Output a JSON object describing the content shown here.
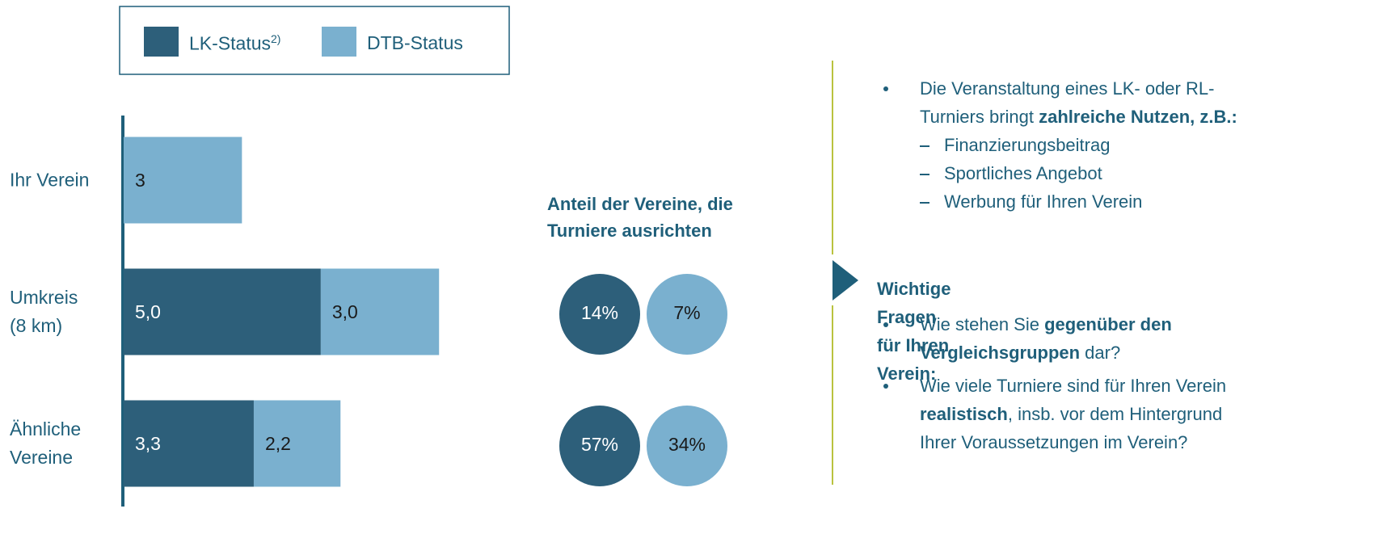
{
  "chart_data": [
    {
      "type": "stacked-barh",
      "categories": [
        "Ihr Verein",
        "Umkreis\n(8 km)",
        "Ähnliche\nVereine"
      ],
      "series": [
        {
          "name": "LK-Status",
          "name_note": "2)",
          "color": "#2d5f7a",
          "label_color": "#ffffff",
          "values": [
            null,
            5.0,
            3.3
          ],
          "value_labels": [
            null,
            "5,0",
            "3,3"
          ]
        },
        {
          "name": "DTB-Status",
          "color": "#7ab0cf",
          "label_color": "#1a1a1a",
          "values": [
            3,
            3.0,
            2.2
          ],
          "value_labels": [
            "3",
            "3,0",
            "2,2"
          ]
        }
      ],
      "xlim": [
        0,
        9
      ]
    },
    {
      "type": "circles",
      "title": "Anteil der Vereine, die Turniere ausrichten",
      "series": [
        {
          "color": "#2d5f7a",
          "label_color": "#ffffff",
          "values": [
            14,
            57
          ],
          "value_labels": [
            "14%",
            "57%"
          ]
        },
        {
          "color": "#7ab0cf",
          "label_color": "#1a1a1a",
          "values": [
            7,
            34
          ],
          "value_labels": [
            "7%",
            "34%"
          ]
        }
      ]
    }
  ],
  "notes": {
    "bullets_top": [
      {
        "runs": [
          {
            "text": "Die Veranstaltung eines LK- oder RL-Turniers bringt ",
            "bold": false
          },
          {
            "text": "zahlreiche Nutzen, z.B.:",
            "bold": true
          }
        ],
        "sub": [
          "Finanzierungsbeitrag",
          "Sportliches Angebot",
          "Werbung für Ihren Verein"
        ]
      }
    ],
    "heading": "Wichtige Fragen für Ihren Verein:",
    "bullets_bottom": [
      {
        "runs": [
          {
            "text": "Wie stehen Sie ",
            "bold": false
          },
          {
            "text": "gegenüber den Vergleichsgruppen",
            "bold": true
          },
          {
            "text": " dar?",
            "bold": false
          }
        ]
      },
      {
        "runs": [
          {
            "text": "Wie viele Turniere sind für Ihren Verein ",
            "bold": false
          },
          {
            "text": "realistisch",
            "bold": true
          },
          {
            "text": ", insb. vor dem Hintergrund Ihrer Voraussetzungen im Verein?",
            "bold": false
          }
        ]
      }
    ]
  }
}
